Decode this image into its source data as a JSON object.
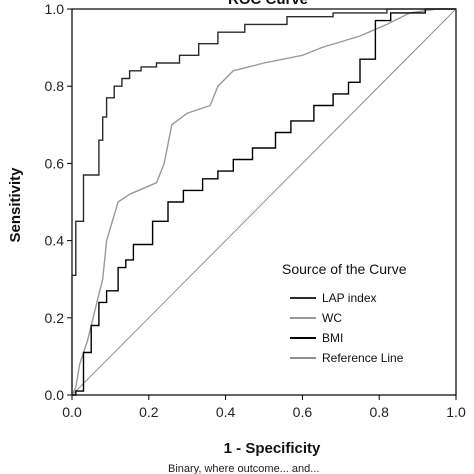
{
  "chart_data": {
    "type": "line",
    "title": "ROC Curve",
    "xlabel": "1 - Specificity",
    "ylabel": "Sensitivity",
    "xlim": [
      0,
      1
    ],
    "ylim": [
      0,
      1
    ],
    "x_ticks": [
      "0.0",
      "0.2",
      "0.4",
      "0.6",
      "0.8",
      "1.0"
    ],
    "y_ticks": [
      "0.0",
      "0.2",
      "0.4",
      "0.6",
      "0.8",
      "1.0"
    ],
    "grid": false,
    "legend": {
      "title": "Source of the Curve",
      "placement": "bottom-right"
    },
    "series": [
      {
        "name": "LAP index",
        "color": "#2b2b2b",
        "style": "step",
        "points": [
          [
            0,
            0
          ],
          [
            0,
            0.31
          ],
          [
            0.01,
            0.31
          ],
          [
            0.01,
            0.45
          ],
          [
            0.03,
            0.45
          ],
          [
            0.03,
            0.57
          ],
          [
            0.07,
            0.57
          ],
          [
            0.07,
            0.66
          ],
          [
            0.08,
            0.66
          ],
          [
            0.08,
            0.72
          ],
          [
            0.09,
            0.72
          ],
          [
            0.09,
            0.77
          ],
          [
            0.11,
            0.77
          ],
          [
            0.11,
            0.8
          ],
          [
            0.13,
            0.8
          ],
          [
            0.13,
            0.82
          ],
          [
            0.15,
            0.82
          ],
          [
            0.15,
            0.84
          ],
          [
            0.18,
            0.84
          ],
          [
            0.18,
            0.85
          ],
          [
            0.22,
            0.85
          ],
          [
            0.22,
            0.86
          ],
          [
            0.28,
            0.86
          ],
          [
            0.28,
            0.88
          ],
          [
            0.33,
            0.88
          ],
          [
            0.33,
            0.91
          ],
          [
            0.38,
            0.91
          ],
          [
            0.38,
            0.94
          ],
          [
            0.45,
            0.94
          ],
          [
            0.45,
            0.96
          ],
          [
            0.56,
            0.96
          ],
          [
            0.56,
            0.98
          ],
          [
            0.68,
            0.98
          ],
          [
            0.68,
            0.99
          ],
          [
            0.82,
            0.99
          ],
          [
            0.82,
            1.0
          ],
          [
            1.0,
            1.0
          ]
        ]
      },
      {
        "name": "WC",
        "color": "#9a9a9a",
        "style": "line",
        "points": [
          [
            0,
            0
          ],
          [
            0.01,
            0.02
          ],
          [
            0.02,
            0.08
          ],
          [
            0.04,
            0.14
          ],
          [
            0.06,
            0.22
          ],
          [
            0.08,
            0.3
          ],
          [
            0.09,
            0.4
          ],
          [
            0.12,
            0.5
          ],
          [
            0.15,
            0.52
          ],
          [
            0.22,
            0.55
          ],
          [
            0.24,
            0.6
          ],
          [
            0.26,
            0.7
          ],
          [
            0.3,
            0.73
          ],
          [
            0.36,
            0.75
          ],
          [
            0.38,
            0.8
          ],
          [
            0.4,
            0.82
          ],
          [
            0.42,
            0.84
          ],
          [
            0.5,
            0.86
          ],
          [
            0.6,
            0.88
          ],
          [
            0.65,
            0.9
          ],
          [
            0.75,
            0.93
          ],
          [
            0.82,
            0.96
          ],
          [
            0.88,
            0.99
          ],
          [
            0.95,
            1.0
          ],
          [
            1.0,
            1.0
          ]
        ]
      },
      {
        "name": "BMI",
        "color": "#000000",
        "style": "step",
        "points": [
          [
            0,
            0
          ],
          [
            0.01,
            0
          ],
          [
            0.01,
            0.01
          ],
          [
            0.03,
            0.01
          ],
          [
            0.03,
            0.11
          ],
          [
            0.05,
            0.11
          ],
          [
            0.05,
            0.18
          ],
          [
            0.07,
            0.18
          ],
          [
            0.07,
            0.24
          ],
          [
            0.09,
            0.24
          ],
          [
            0.09,
            0.27
          ],
          [
            0.12,
            0.27
          ],
          [
            0.12,
            0.33
          ],
          [
            0.14,
            0.33
          ],
          [
            0.14,
            0.35
          ],
          [
            0.16,
            0.35
          ],
          [
            0.16,
            0.39
          ],
          [
            0.21,
            0.39
          ],
          [
            0.21,
            0.45
          ],
          [
            0.25,
            0.45
          ],
          [
            0.25,
            0.5
          ],
          [
            0.29,
            0.5
          ],
          [
            0.29,
            0.53
          ],
          [
            0.34,
            0.53
          ],
          [
            0.34,
            0.56
          ],
          [
            0.38,
            0.56
          ],
          [
            0.38,
            0.58
          ],
          [
            0.42,
            0.58
          ],
          [
            0.42,
            0.61
          ],
          [
            0.47,
            0.61
          ],
          [
            0.47,
            0.64
          ],
          [
            0.53,
            0.64
          ],
          [
            0.53,
            0.68
          ],
          [
            0.57,
            0.68
          ],
          [
            0.57,
            0.71
          ],
          [
            0.63,
            0.71
          ],
          [
            0.63,
            0.75
          ],
          [
            0.68,
            0.75
          ],
          [
            0.68,
            0.78
          ],
          [
            0.72,
            0.78
          ],
          [
            0.72,
            0.81
          ],
          [
            0.75,
            0.81
          ],
          [
            0.75,
            0.87
          ],
          [
            0.79,
            0.87
          ],
          [
            0.79,
            0.97
          ],
          [
            0.83,
            0.97
          ],
          [
            0.83,
            0.99
          ],
          [
            0.92,
            0.99
          ],
          [
            0.92,
            1.0
          ],
          [
            1.0,
            1.0
          ]
        ]
      },
      {
        "name": "Reference Line",
        "color": "#8f8f8f",
        "style": "line",
        "points": [
          [
            0,
            0
          ],
          [
            1,
            1
          ]
        ]
      }
    ]
  },
  "caption": "Binary, where outcome... and... "
}
